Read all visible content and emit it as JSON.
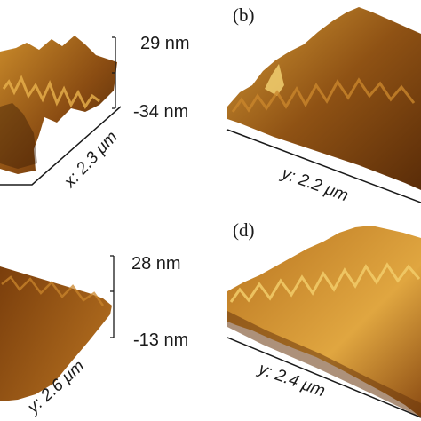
{
  "panels": [
    {
      "id": "a",
      "label": "",
      "scale_max": "29 nm",
      "scale_min": "-34 nm",
      "axis_label": "x: 2.3 μm"
    },
    {
      "id": "b",
      "label": "(b)",
      "scale_max": "",
      "scale_min": "",
      "axis_label": "y: 2.2 μm"
    },
    {
      "id": "c",
      "label": "",
      "scale_max": "28 nm",
      "scale_min": "-13 nm",
      "axis_label": "y: 2.6 μm"
    },
    {
      "id": "d",
      "label": "(d)",
      "scale_max": "",
      "scale_min": "",
      "axis_label": "y: 2.4 μm"
    }
  ],
  "colors": {
    "surface_dark": "#5a2c08",
    "surface_mid": "#a8651a",
    "surface_light": "#e6b04a",
    "surface_highlight": "#f7dc82",
    "axis": "#1a1a1a"
  }
}
